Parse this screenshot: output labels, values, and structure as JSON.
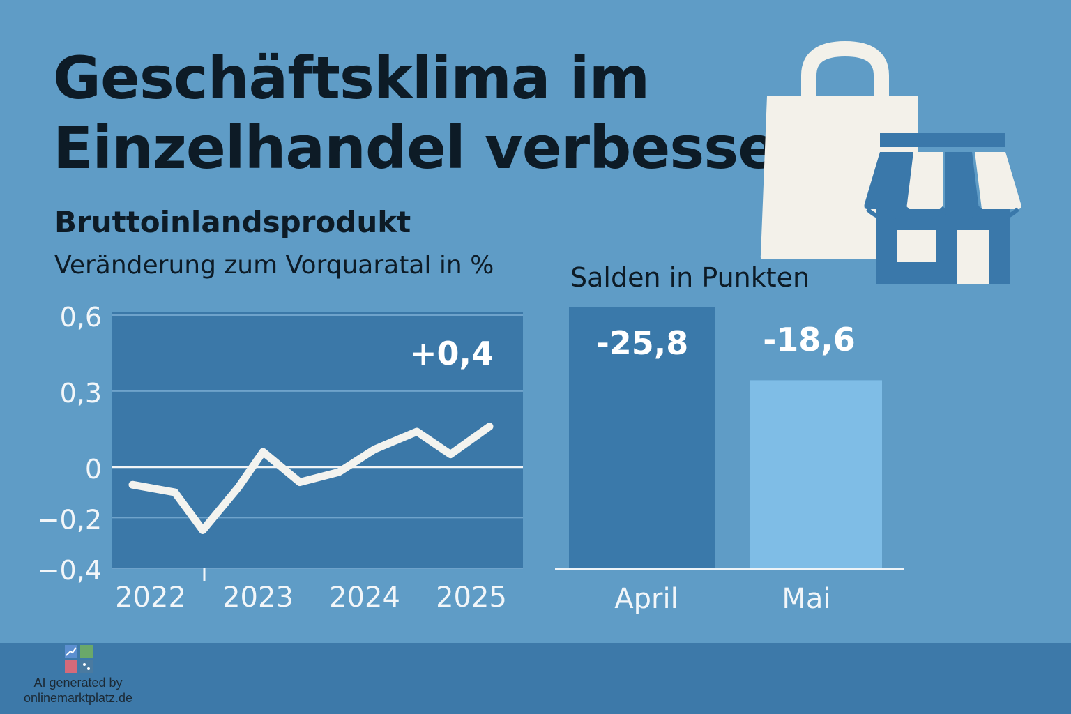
{
  "title": {
    "line1": "Geschäftsklima im",
    "line2": "Einzelhandel verbessert"
  },
  "subtitle": "Bruttoinlandsprodukt",
  "subnote": "Veränderung zum Vorquaratal in %",
  "bars_note": "Salden in Punkten",
  "credit": {
    "line1": "AI generated by",
    "line2": "onlinemarktplatz.de"
  },
  "icons": [
    "shopping-bag-icon",
    "store-icon",
    "logo-icon"
  ],
  "colors": {
    "background": "#5f9cc6",
    "plot_background": "#3b78a8",
    "line": "#f3f3ef",
    "bar_april": "#3a79aa",
    "bar_mai": "#7fbde6",
    "text_dark": "#0d1b26"
  },
  "chart_data": [
    {
      "type": "line",
      "title": "Bruttoinlandsprodukt",
      "ylabel": "Veränderung zum Vorquaratal in %",
      "x_ticks": [
        "2022",
        "2023",
        "2024",
        "2025"
      ],
      "y_ticks": [
        "0,6",
        "0,3",
        "0",
        "−0,2",
        "−0,4"
      ],
      "y_tick_values": [
        0.6,
        0.3,
        0,
        -0.2,
        -0.4
      ],
      "ylim": [
        -0.4,
        0.6
      ],
      "xlim": [
        2022,
        2025.5
      ],
      "grid": true,
      "series": [
        {
          "x": [
            2022.0,
            2022.38,
            2022.63,
            2022.95,
            2023.17,
            2023.5,
            2023.85,
            2024.17,
            2024.55,
            2024.85,
            2025.2
          ],
          "values": [
            -0.07,
            -0.1,
            -0.25,
            -0.08,
            0.06,
            -0.06,
            -0.02,
            0.07,
            0.14,
            0.05,
            0.16
          ]
        }
      ],
      "annotation": {
        "text": "+0,4"
      }
    },
    {
      "type": "bar",
      "ylabel": "Salden in Punkten",
      "categories": [
        "April",
        "Mai"
      ],
      "values": [
        -25.8,
        -18.6
      ],
      "labels": [
        "-25,8",
        "-18,6"
      ]
    }
  ]
}
